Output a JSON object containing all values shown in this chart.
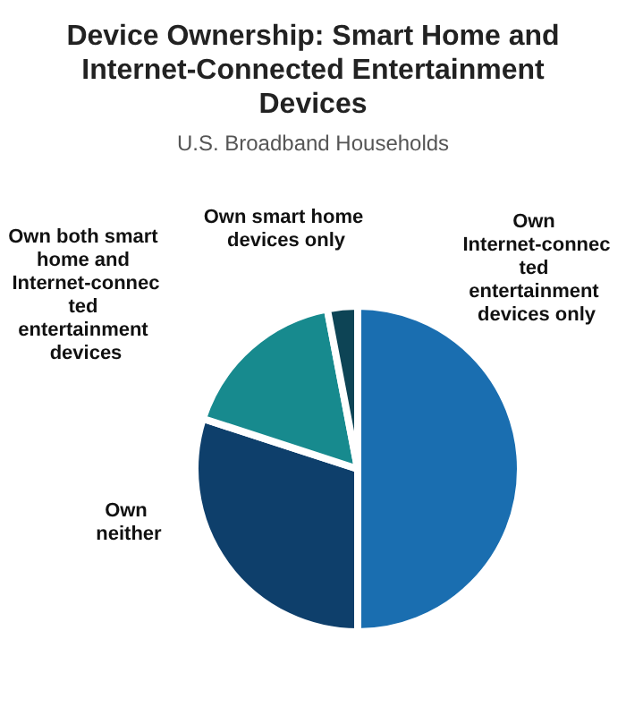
{
  "chart_data": {
    "type": "pie",
    "title": "Device Ownership: Smart Home and Internet-Connected Entertainment Devices",
    "subtitle": "U.S. Broadband Households",
    "categories": [
      "Own Internet-connected entertainment devices only",
      "Own neither",
      "Own both smart home and Internet-connected entertainment devices",
      "Own smart home devices only"
    ],
    "values": [
      50,
      30,
      17,
      3
    ],
    "colors": [
      "#1a6eb0",
      "#0e3f6b",
      "#178a8e",
      "#0d4455"
    ],
    "legend": false
  }
}
